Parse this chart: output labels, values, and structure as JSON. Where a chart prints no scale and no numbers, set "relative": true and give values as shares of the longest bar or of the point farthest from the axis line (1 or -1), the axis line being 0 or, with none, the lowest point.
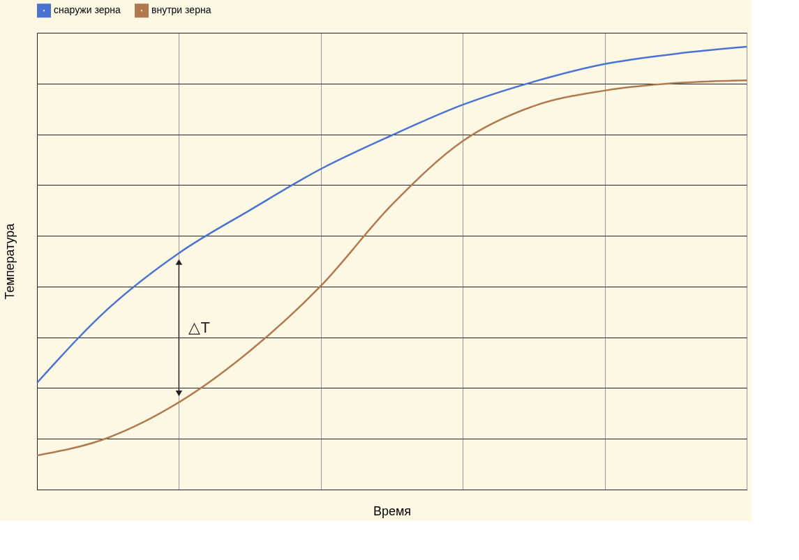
{
  "chart_data": {
    "type": "line",
    "relative": true,
    "xlabel": "Время",
    "ylabel": "Температура",
    "categories": [
      null,
      null,
      null,
      null,
      null,
      null,
      null,
      null,
      null,
      null,
      null
    ],
    "series": [
      {
        "name": "снаружи зерна",
        "color": "#4a72d0",
        "values": [
          0.241,
          0.408,
          0.534,
          0.631,
          0.724,
          0.8,
          0.869,
          0.921,
          0.961,
          0.984,
          1
        ]
      },
      {
        "name": "внутри зерна",
        "color": "#b07a4e",
        "values": [
          0.077,
          0.117,
          0.197,
          0.313,
          0.46,
          0.643,
          0.787,
          0.866,
          0.901,
          0.918,
          0.924
        ]
      }
    ],
    "annotations": [
      "△T"
    ],
    "grid": true,
    "legend": "top left",
    "marker": "none",
    "line_style": "solid"
  }
}
